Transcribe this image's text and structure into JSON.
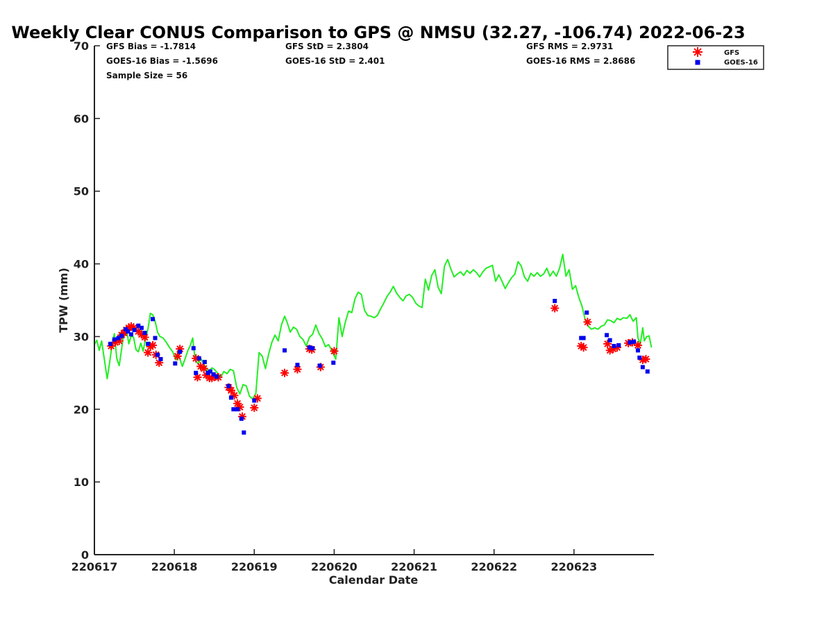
{
  "chart_data": {
    "type": "scatter",
    "title": "Weekly Clear CONUS Comparison to GPS @ NMSU (32.27, -106.74) 2022-06-23",
    "xlabel": "Calendar Date",
    "ylabel": "TPW (mm)",
    "xlim": [
      0,
      7
    ],
    "ylim": [
      0,
      70
    ],
    "xticks": [
      0,
      1,
      2,
      3,
      4,
      5,
      6
    ],
    "xtick_labels": [
      "220617",
      "220618",
      "220619",
      "220620",
      "220621",
      "220622",
      "220623"
    ],
    "yticks": [
      0,
      10,
      20,
      30,
      40,
      50,
      60,
      70
    ],
    "grid": false,
    "legend_position": "top-right",
    "stats": {
      "gfs_bias": "GFS Bias = -1.7814",
      "goes_bias": "GOES-16 Bias = -1.5696",
      "sample_size": "Sample Size = 56",
      "gfs_std": "GFS StD = 2.3804",
      "goes_std": "GOES-16 StD = 2.401",
      "gfs_rms": "GFS RMS = 2.9731",
      "goes_rms": "GOES-16 RMS = 2.8686"
    },
    "series": [
      {
        "name": "GFS",
        "type": "scatter",
        "marker": "asterisk",
        "color": "#ff0000",
        "points": [
          [
            0.21,
            28.7
          ],
          [
            0.26,
            29.2
          ],
          [
            0.31,
            29.4
          ],
          [
            0.34,
            30.2
          ],
          [
            0.37,
            30.5
          ],
          [
            0.4,
            30.9
          ],
          [
            0.43,
            31.2
          ],
          [
            0.46,
            31.4
          ],
          [
            0.49,
            31.2
          ],
          [
            0.55,
            30.7
          ],
          [
            0.59,
            30.3
          ],
          [
            0.63,
            29.9
          ],
          [
            0.67,
            27.8
          ],
          [
            0.7,
            28.6
          ],
          [
            0.73,
            28.8
          ],
          [
            0.77,
            27.5
          ],
          [
            0.81,
            26.4
          ],
          [
            1.04,
            27.3
          ],
          [
            1.07,
            28.3
          ],
          [
            1.27,
            27.0
          ],
          [
            1.29,
            24.4
          ],
          [
            1.33,
            25.9
          ],
          [
            1.37,
            25.6
          ],
          [
            1.4,
            24.7
          ],
          [
            1.44,
            24.3
          ],
          [
            1.47,
            24.3
          ],
          [
            1.51,
            24.5
          ],
          [
            1.55,
            24.4
          ],
          [
            1.68,
            23.0
          ],
          [
            1.71,
            22.6
          ],
          [
            1.75,
            21.9
          ],
          [
            1.79,
            20.8
          ],
          [
            1.82,
            20.3
          ],
          [
            1.85,
            19.0
          ],
          [
            2.0,
            20.2
          ],
          [
            2.04,
            21.5
          ],
          [
            2.38,
            25.0
          ],
          [
            2.54,
            25.5
          ],
          [
            2.69,
            28.3
          ],
          [
            2.72,
            28.2
          ],
          [
            2.83,
            25.8
          ],
          [
            3.0,
            28.0
          ],
          [
            5.76,
            33.9
          ],
          [
            6.09,
            28.7
          ],
          [
            6.12,
            28.5
          ],
          [
            6.17,
            32.0
          ],
          [
            6.42,
            29.0
          ],
          [
            6.45,
            28.1
          ],
          [
            6.49,
            28.3
          ],
          [
            6.54,
            28.5
          ],
          [
            6.68,
            29.1
          ],
          [
            6.73,
            29.2
          ],
          [
            6.8,
            28.8
          ],
          [
            6.86,
            26.8
          ],
          [
            6.9,
            26.9
          ]
        ]
      },
      {
        "name": "GOES-16",
        "type": "scatter",
        "marker": "square",
        "color": "#0000ee",
        "points": [
          [
            0.2,
            29.0
          ],
          [
            0.25,
            29.6
          ],
          [
            0.3,
            29.8
          ],
          [
            0.34,
            30.1
          ],
          [
            0.39,
            31.0
          ],
          [
            0.42,
            30.7
          ],
          [
            0.46,
            30.3
          ],
          [
            0.5,
            30.9
          ],
          [
            0.55,
            31.5
          ],
          [
            0.59,
            31.2
          ],
          [
            0.63,
            30.5
          ],
          [
            0.67,
            29.0
          ],
          [
            0.73,
            32.4
          ],
          [
            0.76,
            29.8
          ],
          [
            0.79,
            27.5
          ],
          [
            0.83,
            26.9
          ],
          [
            1.01,
            26.3
          ],
          [
            1.07,
            27.9
          ],
          [
            1.24,
            28.4
          ],
          [
            1.27,
            25.0
          ],
          [
            1.31,
            27.0
          ],
          [
            1.38,
            26.5
          ],
          [
            1.42,
            25.0
          ],
          [
            1.45,
            25.2
          ],
          [
            1.49,
            24.8
          ],
          [
            1.53,
            24.5
          ],
          [
            1.68,
            23.2
          ],
          [
            1.71,
            21.6
          ],
          [
            1.74,
            20.0
          ],
          [
            1.79,
            20.0
          ],
          [
            1.84,
            18.7
          ],
          [
            1.87,
            16.8
          ],
          [
            2.0,
            21.2
          ],
          [
            2.38,
            28.1
          ],
          [
            2.54,
            26.1
          ],
          [
            2.69,
            28.5
          ],
          [
            2.73,
            28.4
          ],
          [
            2.82,
            26.0
          ],
          [
            2.99,
            26.4
          ],
          [
            5.76,
            34.9
          ],
          [
            6.09,
            29.8
          ],
          [
            6.12,
            29.8
          ],
          [
            6.16,
            33.3
          ],
          [
            6.41,
            30.2
          ],
          [
            6.45,
            29.5
          ],
          [
            6.5,
            28.7
          ],
          [
            6.56,
            28.8
          ],
          [
            6.7,
            29.2
          ],
          [
            6.75,
            29.3
          ],
          [
            6.8,
            28.1
          ],
          [
            6.82,
            27.1
          ],
          [
            6.86,
            25.8
          ],
          [
            6.92,
            25.2
          ]
        ]
      },
      {
        "name": "GPS",
        "type": "line",
        "color": "#22ee22",
        "points": [
          [
            0.0,
            28.9
          ],
          [
            0.03,
            29.5
          ],
          [
            0.06,
            28.1
          ],
          [
            0.09,
            29.4
          ],
          [
            0.12,
            27.2
          ],
          [
            0.16,
            24.2
          ],
          [
            0.19,
            26.4
          ],
          [
            0.22,
            28.8
          ],
          [
            0.25,
            30.4
          ],
          [
            0.28,
            27.0
          ],
          [
            0.31,
            26.0
          ],
          [
            0.34,
            28.2
          ],
          [
            0.37,
            30.8
          ],
          [
            0.4,
            31.2
          ],
          [
            0.43,
            29.0
          ],
          [
            0.46,
            30.1
          ],
          [
            0.49,
            29.9
          ],
          [
            0.52,
            28.2
          ],
          [
            0.55,
            27.9
          ],
          [
            0.58,
            29.1
          ],
          [
            0.61,
            28.0
          ],
          [
            0.64,
            29.7
          ],
          [
            0.67,
            31.0
          ],
          [
            0.7,
            33.2
          ],
          [
            0.73,
            33.0
          ],
          [
            0.76,
            32.1
          ],
          [
            0.79,
            30.6
          ],
          [
            0.82,
            30.0
          ],
          [
            0.86,
            29.8
          ],
          [
            0.9,
            29.2
          ],
          [
            0.94,
            28.5
          ],
          [
            0.98,
            27.9
          ],
          [
            1.02,
            26.8
          ],
          [
            1.06,
            27.2
          ],
          [
            1.1,
            25.9
          ],
          [
            1.13,
            26.8
          ],
          [
            1.17,
            28.1
          ],
          [
            1.2,
            28.8
          ],
          [
            1.23,
            29.8
          ],
          [
            1.26,
            26.8
          ],
          [
            1.3,
            26.2
          ],
          [
            1.33,
            27.0
          ],
          [
            1.36,
            26.4
          ],
          [
            1.4,
            25.6
          ],
          [
            1.43,
            25.2
          ],
          [
            1.47,
            25.7
          ],
          [
            1.5,
            25.5
          ],
          [
            1.54,
            25.0
          ],
          [
            1.58,
            24.4
          ],
          [
            1.62,
            25.2
          ],
          [
            1.66,
            24.9
          ],
          [
            1.7,
            25.5
          ],
          [
            1.74,
            25.3
          ],
          [
            1.78,
            23.0
          ],
          [
            1.82,
            22.1
          ],
          [
            1.86,
            23.4
          ],
          [
            1.9,
            23.2
          ],
          [
            1.94,
            21.8
          ],
          [
            1.98,
            21.4
          ],
          [
            2.02,
            22.2
          ],
          [
            2.06,
            27.8
          ],
          [
            2.1,
            27.3
          ],
          [
            2.14,
            25.6
          ],
          [
            2.18,
            27.6
          ],
          [
            2.22,
            29.2
          ],
          [
            2.26,
            30.2
          ],
          [
            2.3,
            29.4
          ],
          [
            2.34,
            31.6
          ],
          [
            2.38,
            32.8
          ],
          [
            2.41,
            32.0
          ],
          [
            2.45,
            30.6
          ],
          [
            2.49,
            31.3
          ],
          [
            2.53,
            31.0
          ],
          [
            2.57,
            30.0
          ],
          [
            2.61,
            29.6
          ],
          [
            2.65,
            28.7
          ],
          [
            2.69,
            29.9
          ],
          [
            2.73,
            30.3
          ],
          [
            2.77,
            31.6
          ],
          [
            2.81,
            30.4
          ],
          [
            2.85,
            29.7
          ],
          [
            2.89,
            28.6
          ],
          [
            2.93,
            28.9
          ],
          [
            2.97,
            28.1
          ],
          [
            3.02,
            26.9
          ],
          [
            3.06,
            32.6
          ],
          [
            3.1,
            30.0
          ],
          [
            3.14,
            32.0
          ],
          [
            3.18,
            33.5
          ],
          [
            3.22,
            33.3
          ],
          [
            3.26,
            35.2
          ],
          [
            3.3,
            36.1
          ],
          [
            3.34,
            35.8
          ],
          [
            3.38,
            33.6
          ],
          [
            3.42,
            32.9
          ],
          [
            3.46,
            32.8
          ],
          [
            3.5,
            32.6
          ],
          [
            3.54,
            32.9
          ],
          [
            3.58,
            33.8
          ],
          [
            3.62,
            34.6
          ],
          [
            3.66,
            35.5
          ],
          [
            3.7,
            36.1
          ],
          [
            3.74,
            36.9
          ],
          [
            3.78,
            36.0
          ],
          [
            3.82,
            35.4
          ],
          [
            3.86,
            34.9
          ],
          [
            3.9,
            35.6
          ],
          [
            3.94,
            35.8
          ],
          [
            3.98,
            35.4
          ],
          [
            4.02,
            34.6
          ],
          [
            4.06,
            34.2
          ],
          [
            4.1,
            34.0
          ],
          [
            4.14,
            37.9
          ],
          [
            4.18,
            36.4
          ],
          [
            4.22,
            38.4
          ],
          [
            4.26,
            39.2
          ],
          [
            4.3,
            36.8
          ],
          [
            4.34,
            35.9
          ],
          [
            4.38,
            39.7
          ],
          [
            4.42,
            40.6
          ],
          [
            4.46,
            39.3
          ],
          [
            4.5,
            38.2
          ],
          [
            4.54,
            38.6
          ],
          [
            4.58,
            38.9
          ],
          [
            4.62,
            38.4
          ],
          [
            4.66,
            39.1
          ],
          [
            4.7,
            38.7
          ],
          [
            4.74,
            39.2
          ],
          [
            4.78,
            38.8
          ],
          [
            4.82,
            38.2
          ],
          [
            4.86,
            38.9
          ],
          [
            4.9,
            39.4
          ],
          [
            4.94,
            39.6
          ],
          [
            4.98,
            39.8
          ],
          [
            5.02,
            37.6
          ],
          [
            5.06,
            38.5
          ],
          [
            5.1,
            37.6
          ],
          [
            5.14,
            36.6
          ],
          [
            5.18,
            37.4
          ],
          [
            5.22,
            38.1
          ],
          [
            5.26,
            38.6
          ],
          [
            5.3,
            40.3
          ],
          [
            5.34,
            39.7
          ],
          [
            5.38,
            38.2
          ],
          [
            5.42,
            37.6
          ],
          [
            5.46,
            38.7
          ],
          [
            5.5,
            38.3
          ],
          [
            5.54,
            38.8
          ],
          [
            5.58,
            38.3
          ],
          [
            5.62,
            38.6
          ],
          [
            5.66,
            39.4
          ],
          [
            5.7,
            38.3
          ],
          [
            5.74,
            39.0
          ],
          [
            5.78,
            38.3
          ],
          [
            5.82,
            39.4
          ],
          [
            5.86,
            41.3
          ],
          [
            5.9,
            38.3
          ],
          [
            5.94,
            39.2
          ],
          [
            5.98,
            36.5
          ],
          [
            6.02,
            37.0
          ],
          [
            6.06,
            35.4
          ],
          [
            6.1,
            34.2
          ],
          [
            6.14,
            32.3
          ],
          [
            6.18,
            31.4
          ],
          [
            6.22,
            31.0
          ],
          [
            6.26,
            31.2
          ],
          [
            6.3,
            31.0
          ],
          [
            6.34,
            31.4
          ],
          [
            6.38,
            31.6
          ],
          [
            6.42,
            32.3
          ],
          [
            6.46,
            32.2
          ],
          [
            6.5,
            31.9
          ],
          [
            6.54,
            32.5
          ],
          [
            6.58,
            32.3
          ],
          [
            6.62,
            32.6
          ],
          [
            6.66,
            32.5
          ],
          [
            6.7,
            33.0
          ],
          [
            6.74,
            32.1
          ],
          [
            6.78,
            32.6
          ],
          [
            6.8,
            29.8
          ],
          [
            6.83,
            29.0
          ],
          [
            6.86,
            31.2
          ],
          [
            6.88,
            29.4
          ],
          [
            6.91,
            30.0
          ],
          [
            6.94,
            30.1
          ],
          [
            6.97,
            28.5
          ]
        ]
      }
    ]
  }
}
